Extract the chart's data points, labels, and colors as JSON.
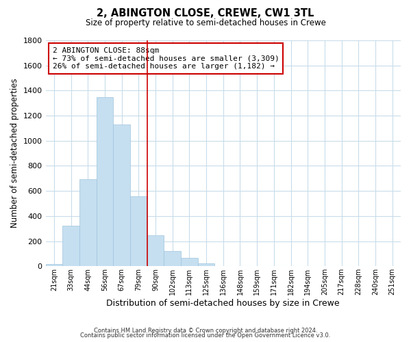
{
  "title": "2, ABINGTON CLOSE, CREWE, CW1 3TL",
  "subtitle": "Size of property relative to semi-detached houses in Crewe",
  "xlabel": "Distribution of semi-detached houses by size in Crewe",
  "ylabel": "Number of semi-detached properties",
  "bar_labels": [
    "21sqm",
    "33sqm",
    "44sqm",
    "56sqm",
    "67sqm",
    "79sqm",
    "90sqm",
    "102sqm",
    "113sqm",
    "125sqm",
    "136sqm",
    "148sqm",
    "159sqm",
    "171sqm",
    "182sqm",
    "194sqm",
    "205sqm",
    "217sqm",
    "228sqm",
    "240sqm",
    "251sqm"
  ],
  "bar_values": [
    20,
    325,
    695,
    1345,
    1130,
    555,
    245,
    120,
    65,
    25,
    0,
    0,
    0,
    0,
    0,
    0,
    0,
    0,
    0,
    0,
    0
  ],
  "bar_color": "#c5dff0",
  "bar_edge_color": "#a0c4dd",
  "vline_color": "#cc0000",
  "ylim": [
    0,
    1800
  ],
  "yticks": [
    0,
    200,
    400,
    600,
    800,
    1000,
    1200,
    1400,
    1600,
    1800
  ],
  "annotation_line1": "2 ABINGTON CLOSE: 88sqm",
  "annotation_line2": "← 73% of semi-detached houses are smaller (3,309)",
  "annotation_line3": "26% of semi-detached houses are larger (1,182) →",
  "footer_line1": "Contains HM Land Registry data © Crown copyright and database right 2024.",
  "footer_line2": "Contains public sector information licensed under the Open Government Licence v3.0.",
  "background_color": "#ffffff",
  "grid_color": "#c8dcea"
}
